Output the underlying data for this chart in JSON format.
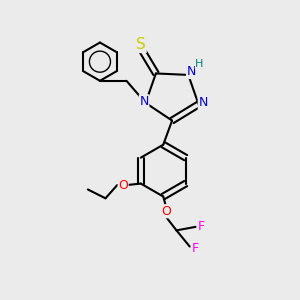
{
  "bg_color": "#ebebeb",
  "atom_colors": {
    "C": "#000000",
    "N": "#0000cc",
    "S": "#cccc00",
    "O": "#ff0000",
    "F": "#ff00ff",
    "H": "#008080"
  },
  "figsize": [
    3.0,
    3.0
  ],
  "dpi": 100
}
